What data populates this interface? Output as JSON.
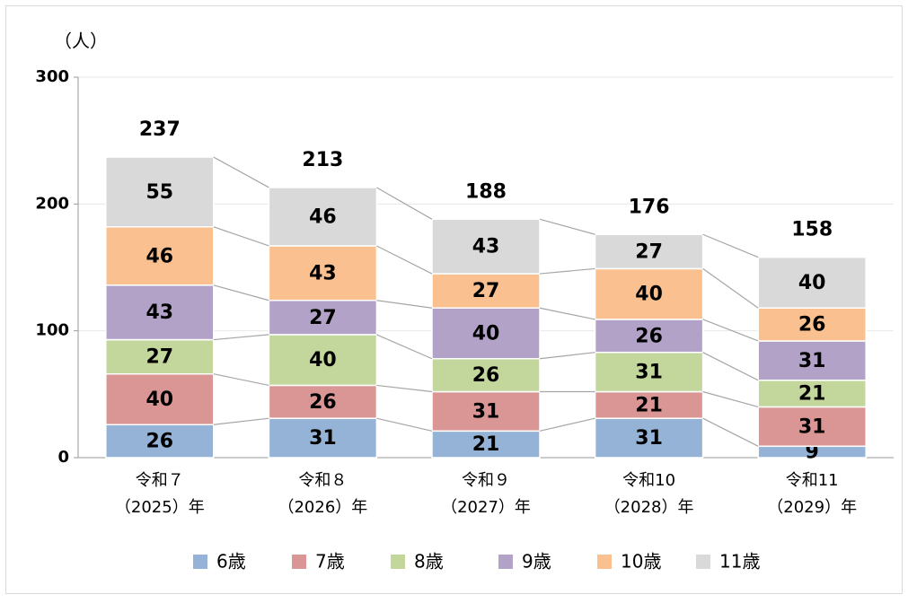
{
  "chart_data": {
    "type": "stacked-bar",
    "y_label": "（人）",
    "categories": [
      [
        "令和７",
        "（2025）年"
      ],
      [
        "令和８",
        "（2026）年"
      ],
      [
        "令和９",
        "（2027）年"
      ],
      [
        "令和10",
        "（2028）年"
      ],
      [
        "令和11",
        "（2029）年"
      ]
    ],
    "series": [
      {
        "name": "6歳",
        "color": "#95b3d7",
        "values": [
          26,
          31,
          21,
          31,
          9
        ]
      },
      {
        "name": "7歳",
        "color": "#d99694",
        "values": [
          40,
          26,
          31,
          21,
          31
        ]
      },
      {
        "name": "8歳",
        "color": "#c3d69b",
        "values": [
          27,
          40,
          26,
          31,
          21
        ]
      },
      {
        "name": "9歳",
        "color": "#b3a2c7",
        "values": [
          43,
          27,
          40,
          26,
          31
        ]
      },
      {
        "name": "10歳",
        "color": "#fac090",
        "values": [
          46,
          43,
          27,
          40,
          26
        ]
      },
      {
        "name": "11歳",
        "color": "#d9d9d9",
        "values": [
          55,
          46,
          43,
          27,
          40
        ]
      }
    ],
    "totals": [
      237,
      213,
      188,
      176,
      158
    ],
    "ylim": [
      0,
      300
    ],
    "yticks": [
      0,
      100,
      200,
      300
    ],
    "grid": true
  }
}
